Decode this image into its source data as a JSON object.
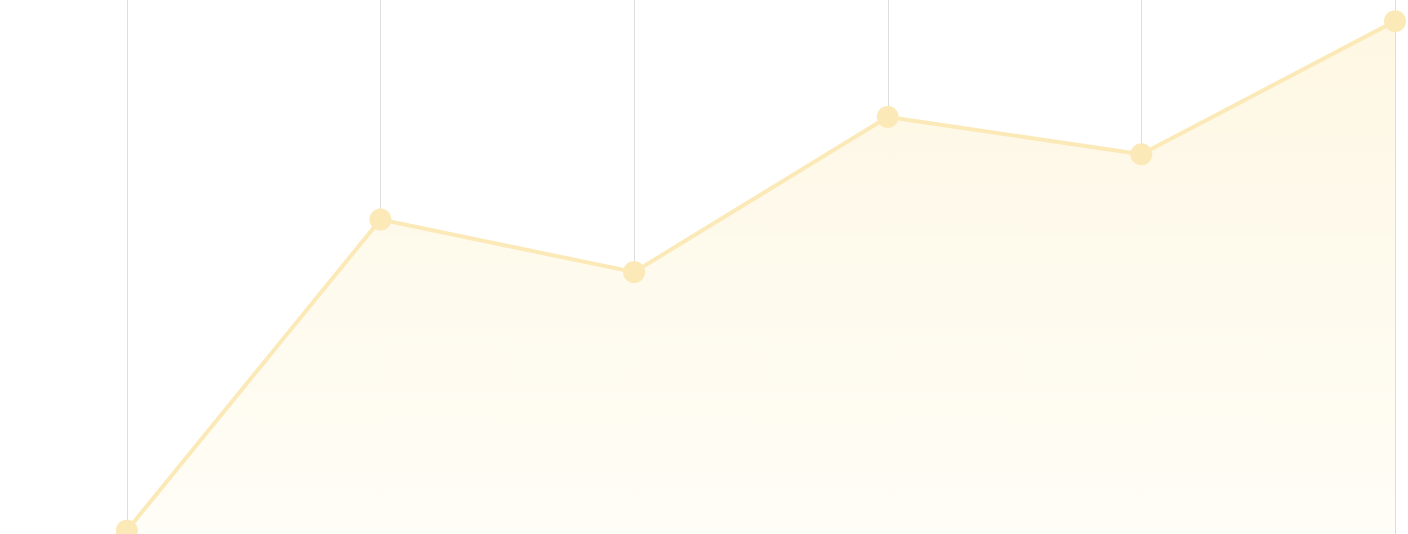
{
  "chart_data": {
    "type": "area",
    "x": [
      0,
      1,
      2,
      3,
      4,
      5
    ],
    "series": [
      {
        "values": [
          -9.6,
          27.1,
          20.9,
          39.2,
          34.8,
          50.5
        ]
      }
    ],
    "xlim": [
      -0.5,
      5.0
    ],
    "ylim": [
      -10,
      53
    ],
    "grid": {
      "vertical": true,
      "horizontal": false
    },
    "legend": "none"
  },
  "colors": {
    "line": "#fbe9b8",
    "marker": "#fbe9b8",
    "fill_top": "#fef7e3",
    "fill_bottom": "#fffdf7",
    "grid": "#dedede",
    "background": "#ffffff"
  }
}
